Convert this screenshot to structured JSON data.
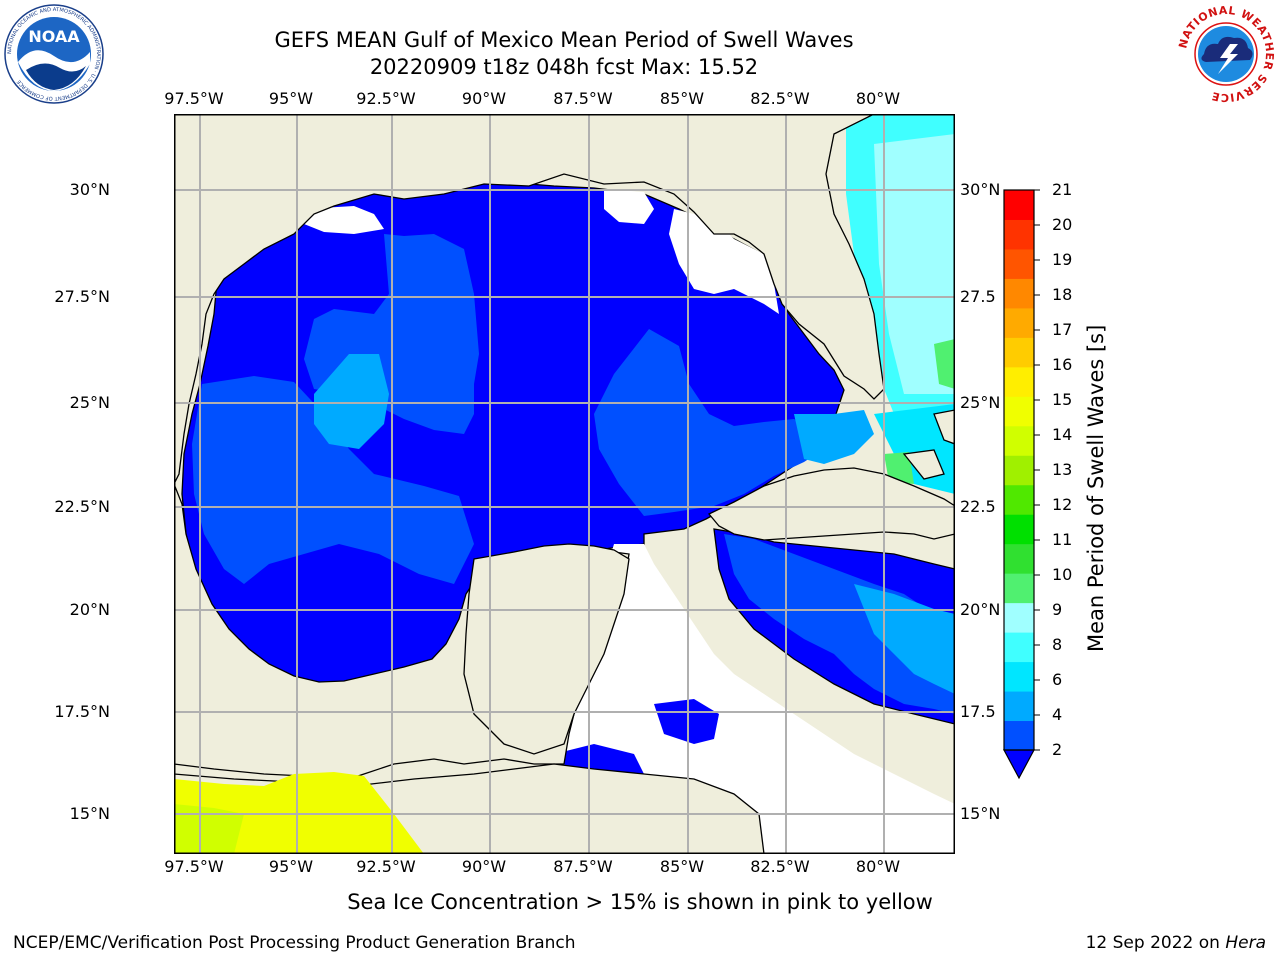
{
  "title": {
    "line1": "GEFS MEAN Gulf of Mexico Mean Period of Swell Waves",
    "line2": "20220909 t18z 048h fcst   Max: 15.52"
  },
  "map": {
    "lon_ticks": [
      "97.5°W",
      "95°W",
      "92.5°W",
      "90°W",
      "87.5°W",
      "85°W",
      "82.5°W",
      "80°W"
    ],
    "lat_ticks_left": [
      "30°N",
      "27.5°N",
      "25°N",
      "22.5°N",
      "20°N",
      "17.5°N",
      "15°N"
    ],
    "lat_ticks_right": [
      "30°N",
      "27.5",
      "25°N",
      "22.5",
      "20°N",
      "17.5",
      "15°N"
    ],
    "colors": {
      "land": "#efeedc",
      "no_data": "#ffffff",
      "grid": "#b0b0b0",
      "coast": "#000000"
    }
  },
  "colorbar": {
    "title": "Mean Period of Swell Waves [s]",
    "tick_labels": [
      "2",
      "4",
      "6",
      "8",
      "9",
      "10",
      "11",
      "12",
      "13",
      "14",
      "15",
      "16",
      "17",
      "18",
      "19",
      "20",
      "21"
    ],
    "colors": [
      "#0050ff",
      "#00aaff",
      "#00e6ff",
      "#40ffff",
      "#a0ffff",
      "#50f070",
      "#30e030",
      "#00e000",
      "#50e800",
      "#a0f000",
      "#d0ff00",
      "#f0ff00",
      "#ffee00",
      "#ffcc00",
      "#ffaa00",
      "#ff8800",
      "#ff5500",
      "#ff3300",
      "#ff0000"
    ],
    "under_color": "#0000ff"
  },
  "legend_note": "Sea Ice Concentration > 15% is shown in pink to yellow",
  "footer": {
    "left": "NCEP/EMC/Verification Post Processing Product Generation Branch",
    "date": "12 Sep 2022 on ",
    "host": "Hera"
  },
  "logos": {
    "noaa": {
      "text": "NOAA",
      "ring": "NATIONAL OCEANIC AND ATMOSPHERIC ADMINISTRATION · U.S. DEPARTMENT OF COMMERCE"
    },
    "nws": {
      "ring": "NATIONAL WEATHER SERVICE"
    }
  }
}
